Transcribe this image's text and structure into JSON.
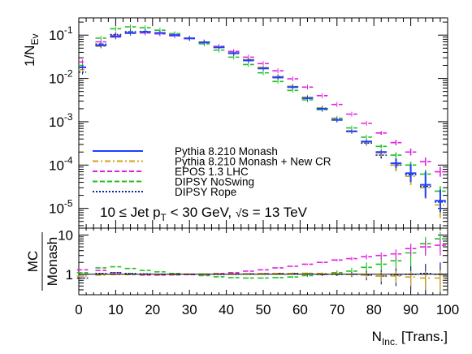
{
  "chart_data": [
    {
      "type": "scatter",
      "xlabel_main": "N",
      "xlabel_sub": "Inc.",
      "xlabel_rest": " [Trans.]",
      "ylabel_main": "1/N",
      "ylabel_sub": "Ev",
      "xlim": [
        0,
        100
      ],
      "ylim": [
        3.5e-06,
        0.25
      ],
      "yscale": "log",
      "x_ticks": [
        "0",
        "10",
        "20",
        "30",
        "40",
        "50",
        "60",
        "70",
        "80",
        "90",
        "100"
      ],
      "y_ticks": [
        {
          "base": "10",
          "exp": "-1",
          "value": 0.1
        },
        {
          "base": "10",
          "exp": "-2",
          "value": 0.01
        },
        {
          "base": "10",
          "exp": "-3",
          "value": 0.001
        },
        {
          "base": "10",
          "exp": "-4",
          "value": 0.0001
        },
        {
          "base": "10",
          "exp": "-5",
          "value": 1e-05
        }
      ],
      "annotation": {
        "pre": "10 ≤ Jet p",
        "sub": "T",
        "mid": " < 30 GeV, ",
        "sqrt": "√",
        "post": "s = 13 TeV"
      },
      "legend_position": "lower-left",
      "series": [
        {
          "name": "Pythia 8.210 Monash",
          "color": "#1f3fff",
          "style": "solid",
          "key": "monash",
          "x": [
            1,
            6,
            10,
            14,
            18,
            22,
            26,
            30,
            34,
            38,
            42,
            46,
            50,
            54,
            58,
            62,
            66,
            70,
            74,
            78,
            82,
            86,
            90,
            94,
            98
          ],
          "y": [
            0.018,
            0.058,
            0.092,
            0.112,
            0.118,
            0.112,
            0.1,
            0.084,
            0.068,
            0.052,
            0.038,
            0.026,
            0.017,
            0.0105,
            0.0063,
            0.0035,
            0.002,
            0.0011,
            0.0006,
            0.00035,
            0.0002,
            0.00011,
            6.5e-05,
            3.5e-05,
            1.5e-05
          ],
          "xerr": [
            1,
            1.5,
            1.5,
            1.5,
            1.5,
            1.5,
            1.5,
            1.5,
            1.5,
            1.5,
            1.5,
            1.5,
            1.5,
            1.5,
            1.5,
            1.5,
            1.5,
            1.5,
            1.5,
            1.5,
            1.5,
            1.5,
            1.5,
            1.5,
            1.5
          ],
          "yerr_factor": [
            1,
            1,
            1,
            1,
            1,
            1,
            1,
            1,
            1,
            1,
            1,
            1,
            1,
            1,
            1,
            1,
            1,
            1,
            1,
            1,
            1,
            1.3,
            1.6,
            2.0,
            1.8
          ]
        },
        {
          "name": "Pythia 8.210 Monash + New CR",
          "color": "#d4a017",
          "style": "dashdot",
          "key": "newcr",
          "x": [
            1,
            6,
            10,
            14,
            18,
            22,
            26,
            30,
            34,
            38,
            42,
            46,
            50,
            54,
            58,
            62,
            66,
            70,
            74,
            78,
            82,
            86,
            90,
            94,
            98
          ],
          "y": [
            0.016,
            0.055,
            0.09,
            0.11,
            0.117,
            0.112,
            0.1,
            0.085,
            0.069,
            0.053,
            0.039,
            0.027,
            0.018,
            0.011,
            0.0066,
            0.0037,
            0.0021,
            0.00115,
            0.00062,
            0.00034,
            0.00019,
            0.0001,
            5.5e-05,
            3e-05,
            1.2e-05
          ],
          "xerr": [
            1,
            1.5,
            1.5,
            1.5,
            1.5,
            1.5,
            1.5,
            1.5,
            1.5,
            1.5,
            1.5,
            1.5,
            1.5,
            1.5,
            1.5,
            1.5,
            1.5,
            1.5,
            1.5,
            1.5,
            1.5,
            1.5,
            1.5,
            1.5,
            1.5
          ],
          "yerr_factor": [
            1,
            1,
            1,
            1,
            1,
            1,
            1,
            1,
            1,
            1,
            1,
            1,
            1,
            1,
            1,
            1,
            1,
            1,
            1,
            1,
            1.2,
            1.4,
            1.6,
            1.8,
            2.0
          ]
        },
        {
          "name": "EPOS 1.3 LHC",
          "color": "#e020e0",
          "style": "dashed",
          "key": "epos",
          "x": [
            1,
            6,
            10,
            14,
            18,
            22,
            26,
            30,
            34,
            38,
            42,
            46,
            50,
            54,
            58,
            62,
            66,
            70,
            74,
            78,
            82,
            86,
            90,
            94,
            98
          ],
          "y": [
            0.024,
            0.07,
            0.098,
            0.11,
            0.112,
            0.107,
            0.096,
            0.083,
            0.069,
            0.055,
            0.042,
            0.031,
            0.022,
            0.015,
            0.0098,
            0.0063,
            0.004,
            0.0025,
            0.0015,
            0.00092,
            0.00055,
            0.00033,
            0.0002,
            0.00012,
            7e-05
          ],
          "xerr": [
            1,
            1.5,
            1.5,
            1.5,
            1.5,
            1.5,
            1.5,
            1.5,
            1.5,
            1.5,
            1.5,
            1.5,
            1.5,
            1.5,
            1.5,
            1.5,
            1.5,
            1.5,
            1.5,
            1.5,
            1.5,
            1.5,
            1.5,
            1.5,
            1.5
          ],
          "yerr_factor": [
            1,
            1,
            1,
            1,
            1,
            1,
            1,
            1,
            1,
            1,
            1,
            1,
            1,
            1,
            1,
            1,
            1,
            1,
            1,
            1,
            1.1,
            1.15,
            1.2,
            1.25,
            1.3
          ]
        },
        {
          "name": "DIPSY NoSwing",
          "color": "#22c022",
          "style": "dashed",
          "key": "noswing",
          "x": [
            1,
            6,
            10,
            14,
            18,
            22,
            26,
            30,
            34,
            38,
            42,
            46,
            50,
            54,
            58,
            62,
            66,
            70,
            74,
            78,
            82,
            86,
            90,
            94,
            98
          ],
          "y": [
            0.02,
            0.085,
            0.14,
            0.155,
            0.148,
            0.13,
            0.108,
            0.085,
            0.063,
            0.045,
            0.031,
            0.021,
            0.0135,
            0.0085,
            0.0053,
            0.0032,
            0.0019,
            0.0012,
            0.00072,
            0.00044,
            0.00027,
            0.00017,
            0.0001,
            6.2e-05,
            2.5e-05
          ],
          "xerr": [
            1,
            1.5,
            1.5,
            1.5,
            1.5,
            1.5,
            1.5,
            1.5,
            1.5,
            1.5,
            1.5,
            1.5,
            1.5,
            1.5,
            1.5,
            1.5,
            1.5,
            1.5,
            1.5,
            1.5,
            1.5,
            1.5,
            1.5,
            1.5,
            1.5
          ],
          "yerr_factor": [
            1,
            1,
            1,
            1,
            1,
            1,
            1,
            1,
            1,
            1,
            1,
            1,
            1,
            1,
            1,
            1,
            1,
            1,
            1,
            1,
            1.1,
            1.15,
            1.2,
            1.25,
            1.3
          ]
        },
        {
          "name": "DIPSY Rope",
          "color": "#0a2a8a",
          "style": "dotted",
          "key": "rope",
          "x": [
            1,
            6,
            10,
            14,
            18,
            22,
            26,
            30,
            34,
            38,
            42,
            46,
            50,
            54,
            58,
            62,
            66,
            70,
            74,
            78,
            82,
            86,
            90,
            94,
            98
          ],
          "y": [
            0.014,
            0.062,
            0.103,
            0.12,
            0.121,
            0.113,
            0.1,
            0.085,
            0.069,
            0.053,
            0.039,
            0.027,
            0.0175,
            0.011,
            0.0064,
            0.0036,
            0.002,
            0.0011,
            0.0006,
            0.00032,
            0.00017,
            0.0001,
            6e-05,
            3.2e-05,
            1.4e-05
          ],
          "xerr": [
            1,
            1.5,
            1.5,
            1.5,
            1.5,
            1.5,
            1.5,
            1.5,
            1.5,
            1.5,
            1.5,
            1.5,
            1.5,
            1.5,
            1.5,
            1.5,
            1.5,
            1.5,
            1.5,
            1.5,
            1.5,
            1.5,
            1.5,
            1.5,
            1.5
          ],
          "yerr_factor": [
            1,
            1,
            1,
            1,
            1,
            1,
            1,
            1,
            1,
            1,
            1,
            1,
            1,
            1,
            1,
            1,
            1,
            1,
            1,
            1,
            1.2,
            1.35,
            1.5,
            1.7,
            1.9
          ]
        }
      ]
    },
    {
      "type": "scatter",
      "panel": "ratio",
      "ylabel_top": "MC",
      "ylabel_bottom": "Monash",
      "xlim": [
        0,
        100
      ],
      "ylim": [
        0.3,
        15
      ],
      "yscale": "log",
      "reference_line": 1,
      "y_ticks": [
        {
          "label": "10",
          "value": 10
        },
        {
          "label": "1",
          "value": 1
        }
      ],
      "series": [
        {
          "name": "Pythia 8.210 Monash + New CR",
          "color": "#d4a017",
          "style": "dashdot",
          "key": "newcr",
          "x": [
            1,
            6,
            10,
            14,
            18,
            22,
            26,
            30,
            34,
            38,
            42,
            46,
            50,
            54,
            58,
            62,
            66,
            70,
            74,
            78,
            82,
            86,
            90,
            94,
            98
          ],
          "y": [
            0.9,
            0.95,
            0.98,
            0.98,
            0.99,
            1.0,
            1.0,
            1.01,
            1.01,
            1.02,
            1.02,
            1.03,
            1.05,
            1.05,
            1.05,
            1.06,
            1.05,
            1.05,
            1.0,
            0.95,
            0.9,
            0.9,
            0.85,
            0.8,
            0.8
          ],
          "yerr": [
            0.02,
            0.02,
            0.02,
            0.02,
            0.02,
            0.02,
            0.02,
            0.02,
            0.02,
            0.02,
            0.02,
            0.02,
            0.03,
            0.03,
            0.04,
            0.05,
            0.06,
            0.08,
            0.1,
            0.15,
            0.25,
            0.3,
            0.35,
            0.4,
            0.45
          ]
        },
        {
          "name": "EPOS 1.3 LHC",
          "color": "#e020e0",
          "style": "dashed",
          "key": "epos",
          "x": [
            1,
            6,
            10,
            14,
            18,
            22,
            26,
            30,
            34,
            38,
            42,
            46,
            50,
            54,
            58,
            62,
            66,
            70,
            74,
            78,
            82,
            86,
            90,
            94,
            98
          ],
          "y": [
            1.3,
            1.25,
            1.1,
            1.0,
            0.95,
            0.95,
            0.96,
            0.98,
            1.0,
            1.05,
            1.1,
            1.2,
            1.3,
            1.45,
            1.6,
            1.8,
            2.0,
            2.3,
            2.5,
            2.8,
            3.0,
            3.3,
            4.5,
            5.0,
            5.5
          ],
          "yerr": [
            0.02,
            0.02,
            0.02,
            0.02,
            0.02,
            0.02,
            0.02,
            0.02,
            0.02,
            0.02,
            0.02,
            0.03,
            0.03,
            0.04,
            0.05,
            0.07,
            0.1,
            0.15,
            0.25,
            0.4,
            0.6,
            1.0,
            1.5,
            2.0,
            2.5
          ]
        },
        {
          "name": "DIPSY NoSwing",
          "color": "#22c022",
          "style": "dashed",
          "key": "noswing",
          "x": [
            1,
            6,
            10,
            14,
            18,
            22,
            26,
            30,
            34,
            38,
            42,
            46,
            50,
            54,
            58,
            62,
            66,
            70,
            74,
            78,
            82,
            86,
            90,
            94,
            98
          ],
          "y": [
            1.1,
            1.45,
            1.55,
            1.4,
            1.25,
            1.15,
            1.05,
            1.0,
            0.92,
            0.86,
            0.82,
            0.8,
            0.8,
            0.82,
            0.85,
            0.92,
            1.0,
            1.1,
            1.2,
            1.5,
            1.8,
            2.2,
            3.5,
            6.0,
            8.0
          ],
          "yerr": [
            0.02,
            0.02,
            0.02,
            0.02,
            0.02,
            0.02,
            0.02,
            0.02,
            0.02,
            0.02,
            0.02,
            0.03,
            0.03,
            0.04,
            0.05,
            0.07,
            0.1,
            0.15,
            0.25,
            0.5,
            0.9,
            1.5,
            2.5,
            3.0,
            4.0
          ]
        },
        {
          "name": "DIPSY Rope",
          "color": "#0a2a8a",
          "style": "dotted",
          "key": "rope",
          "x": [
            1,
            6,
            10,
            14,
            18,
            22,
            26,
            30,
            34,
            38,
            42,
            46,
            50,
            54,
            58,
            62,
            66,
            70,
            74,
            78,
            82,
            86,
            90,
            94,
            98
          ],
          "y": [
            0.8,
            1.05,
            1.1,
            1.05,
            1.02,
            1.0,
            1.0,
            1.0,
            1.0,
            1.0,
            1.01,
            1.02,
            1.03,
            1.05,
            1.05,
            1.03,
            1.0,
            1.0,
            1.0,
            0.95,
            0.9,
            0.95,
            1.0,
            1.05,
            1.0
          ],
          "yerr": [
            0.02,
            0.02,
            0.02,
            0.02,
            0.02,
            0.02,
            0.02,
            0.02,
            0.02,
            0.02,
            0.02,
            0.02,
            0.03,
            0.04,
            0.05,
            0.06,
            0.08,
            0.1,
            0.15,
            0.25,
            0.35,
            0.45,
            0.6,
            0.8,
            1.0
          ]
        }
      ]
    }
  ]
}
